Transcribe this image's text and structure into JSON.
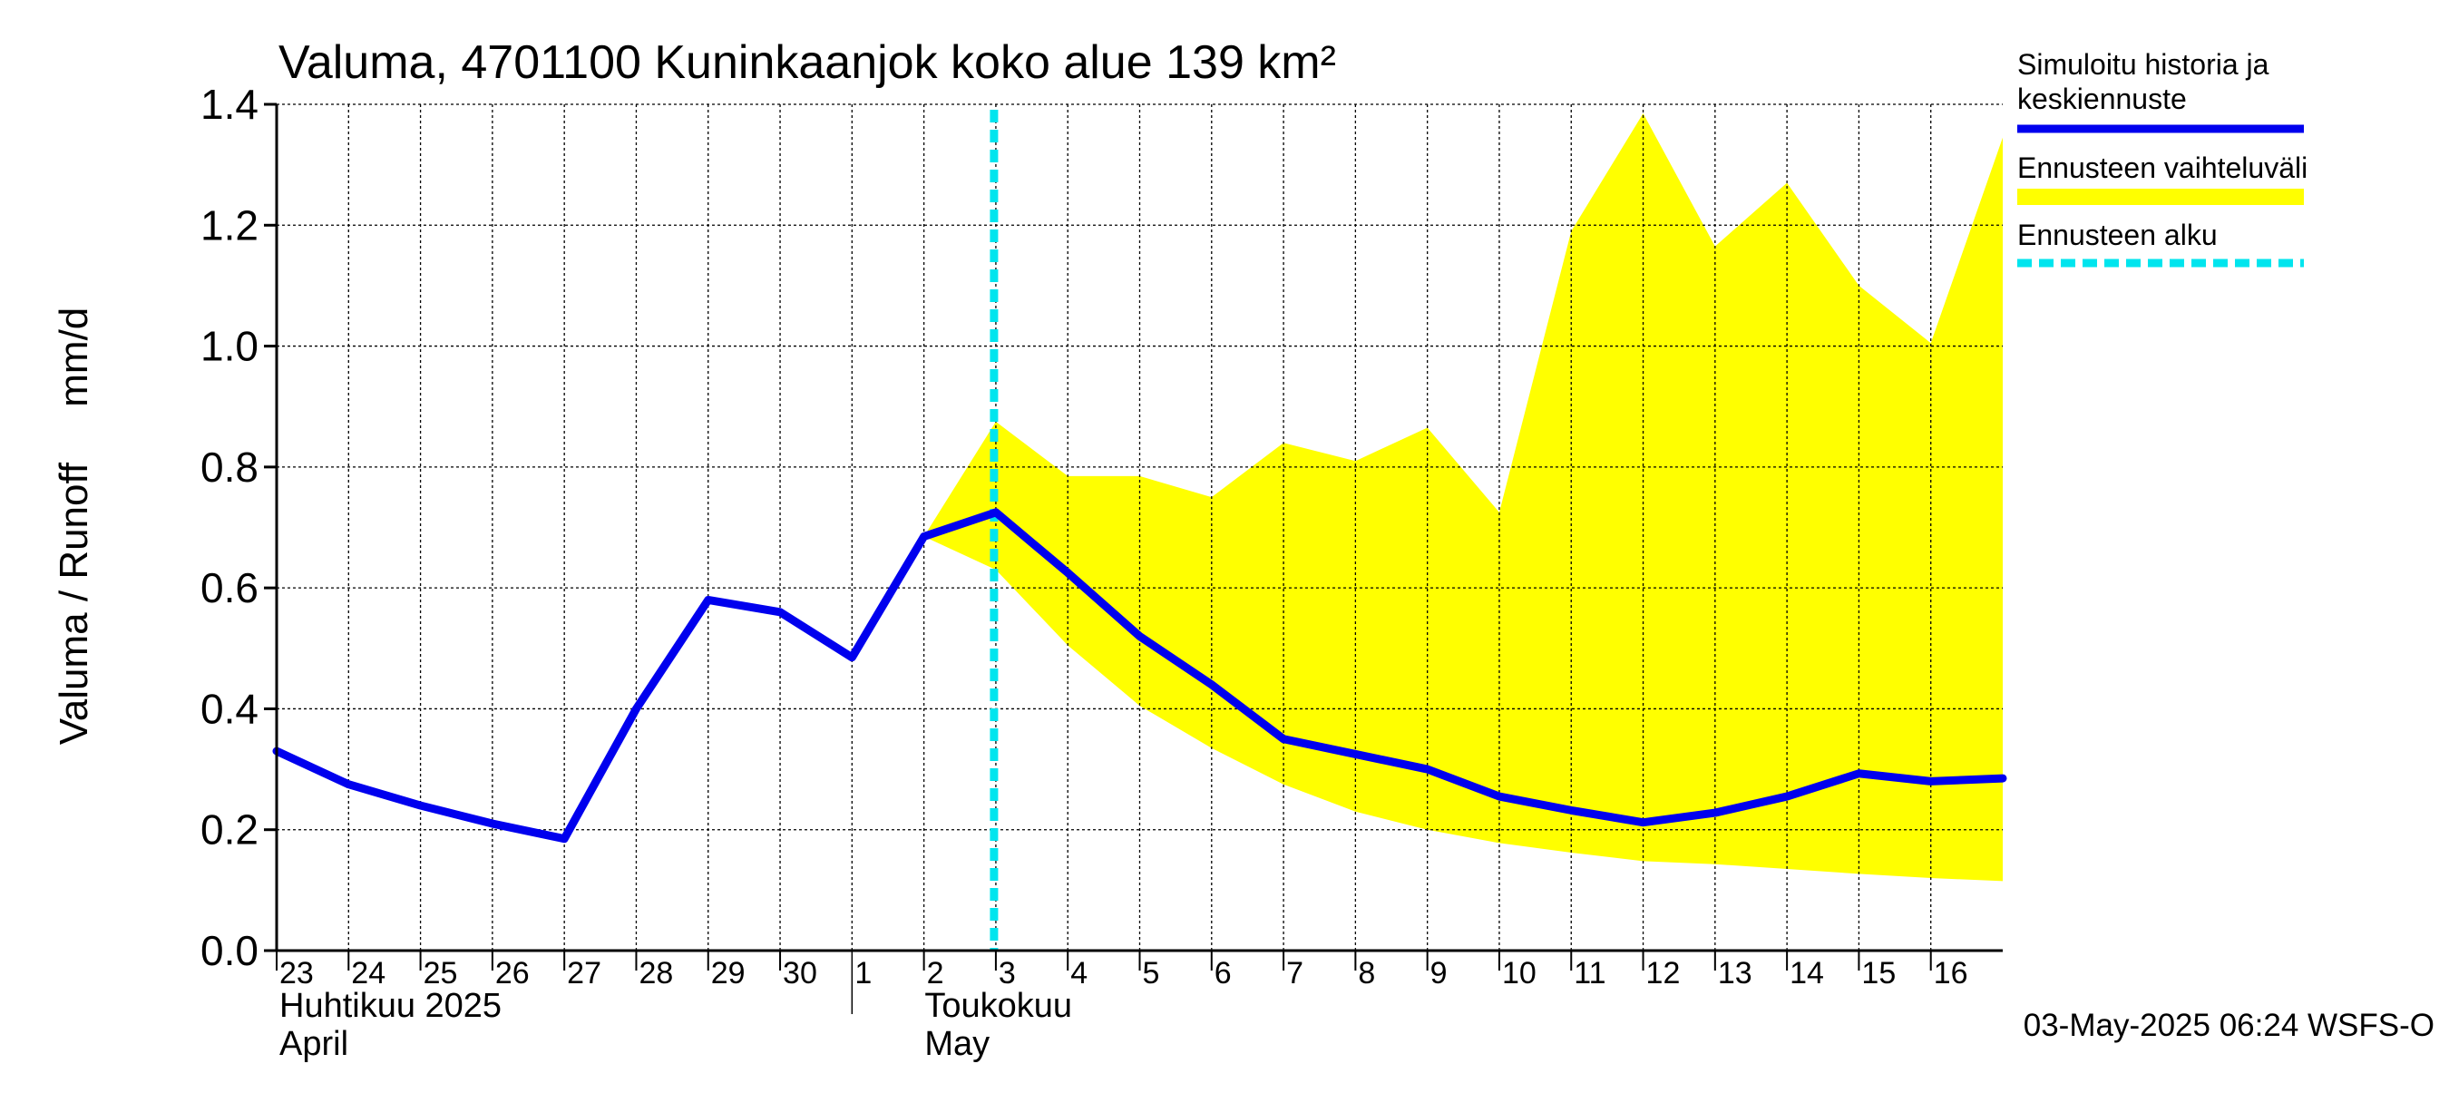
{
  "chart_data": {
    "type": "line",
    "title": "Valuma, 4701100 Kuninkaanjok koko alue 139 km²",
    "ylabel": "Valuma / Runoff     mm/d",
    "ylim": [
      0,
      1.4
    ],
    "yticks": [
      "0.0",
      "0.2",
      "0.4",
      "0.6",
      "0.8",
      "1.0",
      "1.2",
      "1.4"
    ],
    "x_start": "2025-04-23",
    "x_end": "2025-05-17",
    "day_labels": [
      {
        "date": "2025-04-23",
        "label": "23"
      },
      {
        "date": "2025-04-24",
        "label": "24"
      },
      {
        "date": "2025-04-25",
        "label": "25"
      },
      {
        "date": "2025-04-26",
        "label": "26"
      },
      {
        "date": "2025-04-27",
        "label": "27"
      },
      {
        "date": "2025-04-28",
        "label": "28"
      },
      {
        "date": "2025-04-29",
        "label": "29"
      },
      {
        "date": "2025-04-30",
        "label": "30"
      },
      {
        "date": "2025-05-01",
        "label": "1"
      },
      {
        "date": "2025-05-02",
        "label": "2"
      },
      {
        "date": "2025-05-03",
        "label": "3"
      },
      {
        "date": "2025-05-04",
        "label": "4"
      },
      {
        "date": "2025-05-05",
        "label": "5"
      },
      {
        "date": "2025-05-06",
        "label": "6"
      },
      {
        "date": "2025-05-07",
        "label": "7"
      },
      {
        "date": "2025-05-08",
        "label": "8"
      },
      {
        "date": "2025-05-09",
        "label": "9"
      },
      {
        "date": "2025-05-10",
        "label": "10"
      },
      {
        "date": "2025-05-11",
        "label": "11"
      },
      {
        "date": "2025-05-12",
        "label": "12"
      },
      {
        "date": "2025-05-13",
        "label": "13"
      },
      {
        "date": "2025-05-14",
        "label": "14"
      },
      {
        "date": "2025-05-15",
        "label": "15"
      },
      {
        "date": "2025-05-16",
        "label": "16"
      }
    ],
    "month_labels": [
      {
        "date": "2025-04-23",
        "line1": "Huhtikuu  2025",
        "line2": "April"
      },
      {
        "date": "2025-05-01",
        "line1": "Toukokuu",
        "line2": "May"
      }
    ],
    "series": [
      {
        "name": "Simuloitu historia ja keskiennuste",
        "color": "#0000ee",
        "points": [
          [
            "2025-04-23",
            0.33
          ],
          [
            "2025-04-24",
            0.275
          ],
          [
            "2025-04-25",
            0.24
          ],
          [
            "2025-04-26",
            0.21
          ],
          [
            "2025-04-27",
            0.185
          ],
          [
            "2025-04-28",
            0.4
          ],
          [
            "2025-04-29",
            0.58
          ],
          [
            "2025-04-30",
            0.56
          ],
          [
            "2025-05-01",
            0.485
          ],
          [
            "2025-05-02",
            0.685
          ],
          [
            "2025-05-03",
            0.725
          ],
          [
            "2025-05-04",
            0.625
          ],
          [
            "2025-05-05",
            0.52
          ],
          [
            "2025-05-06",
            0.44
          ],
          [
            "2025-05-07",
            0.35
          ],
          [
            "2025-05-08",
            0.325
          ],
          [
            "2025-05-09",
            0.3
          ],
          [
            "2025-05-10",
            0.255
          ],
          [
            "2025-05-11",
            0.232
          ],
          [
            "2025-05-12",
            0.212
          ],
          [
            "2025-05-13",
            0.228
          ],
          [
            "2025-05-14",
            0.255
          ],
          [
            "2025-05-15",
            0.293
          ],
          [
            "2025-05-16",
            0.28
          ],
          [
            "2025-05-17",
            0.285
          ]
        ]
      }
    ],
    "band": {
      "name": "Ennusteen vaihteluväli",
      "color": "#ffff00",
      "upper": [
        [
          "2025-05-02",
          0.685
        ],
        [
          "2025-05-03",
          0.875
        ],
        [
          "2025-05-04",
          0.785
        ],
        [
          "2025-05-05",
          0.785
        ],
        [
          "2025-05-06",
          0.75
        ],
        [
          "2025-05-07",
          0.84
        ],
        [
          "2025-05-08",
          0.81
        ],
        [
          "2025-05-09",
          0.865
        ],
        [
          "2025-05-10",
          0.725
        ],
        [
          "2025-05-11",
          1.19
        ],
        [
          "2025-05-12",
          1.385
        ],
        [
          "2025-05-13",
          1.165
        ],
        [
          "2025-05-14",
          1.27
        ],
        [
          "2025-05-15",
          1.1
        ],
        [
          "2025-05-16",
          1.005
        ],
        [
          "2025-05-17",
          1.345
        ]
      ],
      "lower": [
        [
          "2025-05-02",
          0.685
        ],
        [
          "2025-05-03",
          0.63
        ],
        [
          "2025-05-04",
          0.505
        ],
        [
          "2025-05-05",
          0.405
        ],
        [
          "2025-05-06",
          0.335
        ],
        [
          "2025-05-07",
          0.275
        ],
        [
          "2025-05-08",
          0.23
        ],
        [
          "2025-05-09",
          0.2
        ],
        [
          "2025-05-10",
          0.178
        ],
        [
          "2025-05-11",
          0.162
        ],
        [
          "2025-05-12",
          0.148
        ],
        [
          "2025-05-13",
          0.143
        ],
        [
          "2025-05-14",
          0.135
        ],
        [
          "2025-05-15",
          0.127
        ],
        [
          "2025-05-16",
          0.12
        ],
        [
          "2025-05-17",
          0.115
        ]
      ]
    },
    "forecast_start": {
      "name": "Ennusteen alku",
      "date": "2025-05-03",
      "color": "#00e5ee"
    },
    "legend": {
      "placement": "right",
      "items": [
        {
          "line1": "Simuloitu historia ja",
          "line2": "keskiennuste",
          "color": "#0000ee",
          "style": "solid"
        },
        {
          "line1": "Ennusteen vaihteluväli",
          "line2": "",
          "color": "#ffff00",
          "style": "band"
        },
        {
          "line1": "Ennusteen alku",
          "line2": "",
          "color": "#00e5ee",
          "style": "dashed"
        }
      ]
    },
    "grid": true,
    "footer": "03-May-2025 06:24 WSFS-O"
  }
}
